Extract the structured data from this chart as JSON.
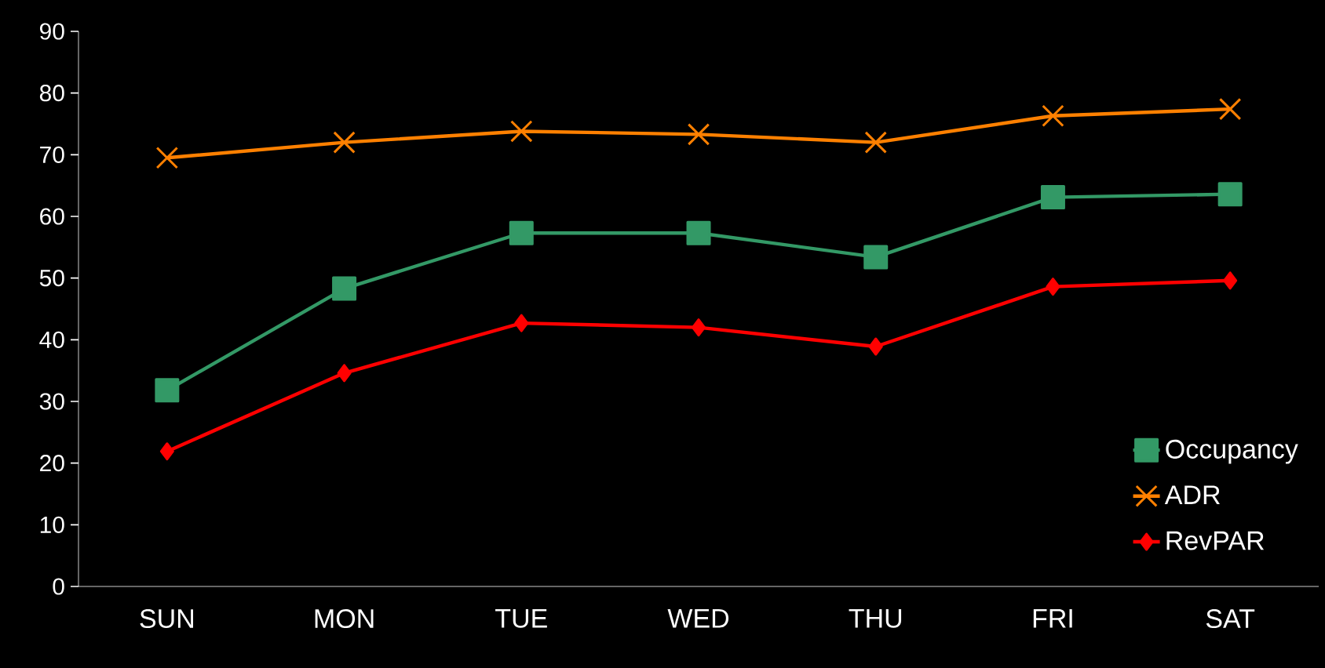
{
  "chart_data": {
    "type": "line",
    "categories": [
      "SUN",
      "MON",
      "TUE",
      "WED",
      "THU",
      "FRI",
      "SAT"
    ],
    "series": [
      {
        "name": "Occupancy",
        "color": "#339966",
        "marker": "square",
        "values": [
          31.8,
          48.3,
          57.3,
          57.3,
          53.4,
          63.1,
          63.6
        ]
      },
      {
        "name": "ADR",
        "color": "#ff8000",
        "marker": "cross",
        "values": [
          69.5,
          72.0,
          73.8,
          73.3,
          72.0,
          76.3,
          77.4
        ]
      },
      {
        "name": "RevPAR",
        "color": "#ff0000",
        "marker": "diamond",
        "values": [
          21.9,
          34.6,
          42.7,
          42.0,
          38.9,
          48.6,
          49.6
        ]
      }
    ],
    "ylim": [
      0,
      90
    ],
    "yticks": [
      0,
      10,
      20,
      30,
      40,
      50,
      60,
      70,
      80,
      90
    ],
    "grid": false,
    "legend": "bottom right",
    "line_style": "solid"
  }
}
